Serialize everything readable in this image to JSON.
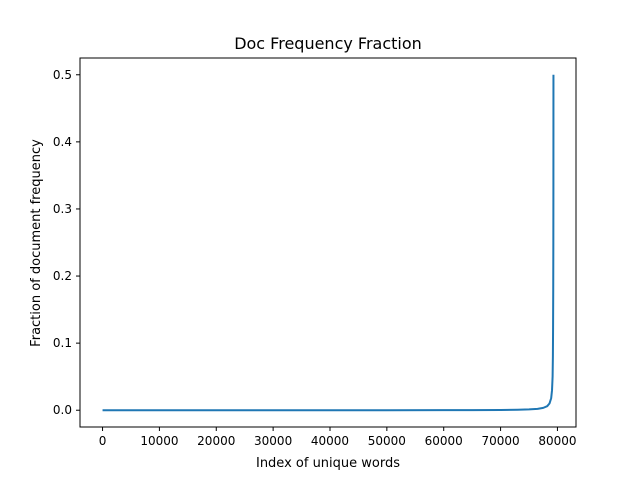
{
  "chart_data": {
    "type": "line",
    "title": "Doc Frequency Fraction",
    "xlabel": "Index of unique words",
    "ylabel": "Fraction of document frequency",
    "xlim": [
      -3965,
      83265
    ],
    "ylim": [
      -0.025,
      0.525
    ],
    "xticks": [
      0,
      10000,
      20000,
      30000,
      40000,
      50000,
      60000,
      70000,
      80000
    ],
    "yticks": [
      0.0,
      0.1,
      0.2,
      0.3,
      0.4,
      0.5
    ],
    "xtick_labels": [
      "0",
      "10000",
      "20000",
      "30000",
      "40000",
      "50000",
      "60000",
      "70000",
      "80000"
    ],
    "ytick_labels": [
      "0.0",
      "0.1",
      "0.2",
      "0.3",
      "0.4",
      "0.5"
    ],
    "grid": false,
    "legend": "none",
    "series": [
      {
        "color": "#1f77b4",
        "x": [
          0,
          10000,
          20000,
          30000,
          40000,
          50000,
          60000,
          65000,
          70000,
          73000,
          75000,
          76500,
          77500,
          78200,
          78600,
          78900,
          79050,
          79150,
          79200,
          79230,
          79260,
          79280,
          79290,
          79295,
          79300
        ],
        "y": [
          0.0,
          0.0,
          0.0,
          0.0,
          0.0,
          0.0,
          0.0001,
          0.0002,
          0.0004,
          0.0007,
          0.0012,
          0.002,
          0.0035,
          0.006,
          0.01,
          0.018,
          0.03,
          0.05,
          0.08,
          0.12,
          0.18,
          0.25,
          0.33,
          0.42,
          0.5
        ]
      }
    ]
  }
}
